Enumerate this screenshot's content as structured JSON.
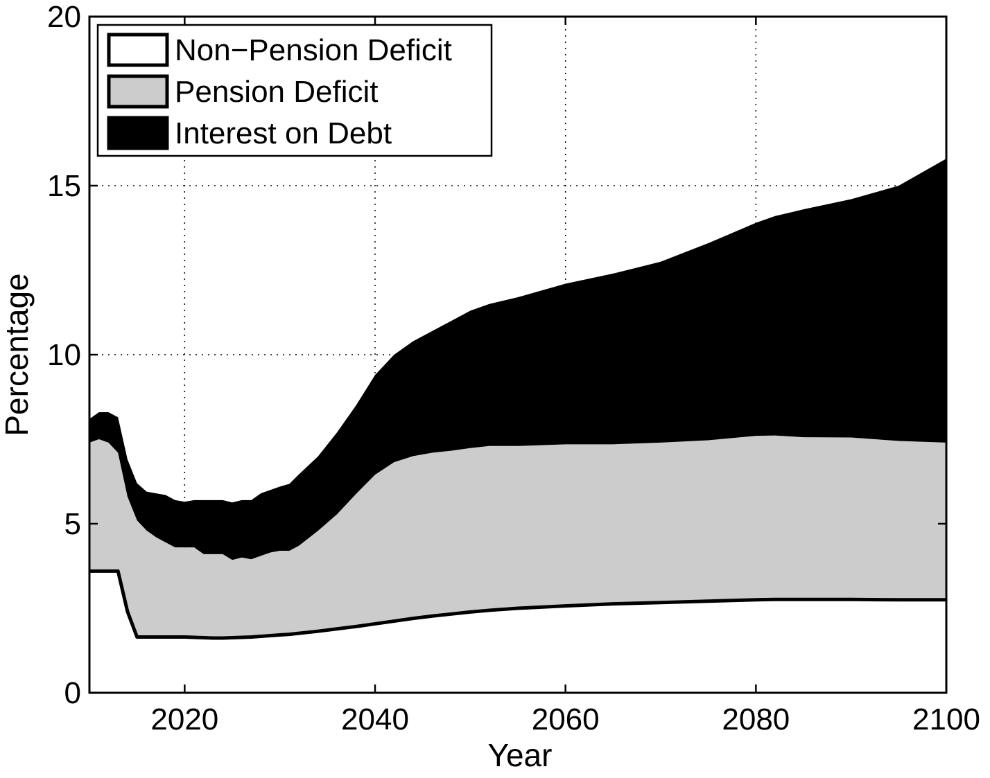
{
  "chart_data": {
    "type": "area",
    "stacked": true,
    "title": "",
    "xlabel": "Year",
    "ylabel": "Percentage",
    "xlim": [
      2010,
      2100
    ],
    "ylim": [
      0,
      20
    ],
    "xticks": [
      2020,
      2040,
      2060,
      2080,
      2100
    ],
    "yticks": [
      0,
      5,
      10,
      15,
      20
    ],
    "grid": true,
    "legend_position": "top-left",
    "x": [
      2010,
      2011,
      2012,
      2013,
      2014,
      2015,
      2016,
      2017,
      2018,
      2019,
      2020,
      2021,
      2022,
      2023,
      2024,
      2025,
      2026,
      2027,
      2028,
      2029,
      2030,
      2031,
      2032,
      2034,
      2036,
      2038,
      2040,
      2042,
      2044,
      2046,
      2048,
      2050,
      2052,
      2055,
      2060,
      2065,
      2070,
      2075,
      2080,
      2082,
      2085,
      2090,
      2095,
      2100
    ],
    "series": [
      {
        "name": "Non−Pension Deficit",
        "color": "#ffffff",
        "values": [
          3.6,
          3.6,
          3.6,
          3.6,
          2.4,
          1.65,
          1.65,
          1.65,
          1.65,
          1.65,
          1.65,
          1.64,
          1.63,
          1.62,
          1.62,
          1.63,
          1.64,
          1.65,
          1.67,
          1.69,
          1.71,
          1.73,
          1.76,
          1.82,
          1.89,
          1.96,
          2.04,
          2.12,
          2.2,
          2.27,
          2.33,
          2.39,
          2.44,
          2.5,
          2.57,
          2.63,
          2.67,
          2.71,
          2.75,
          2.76,
          2.76,
          2.76,
          2.75,
          2.75
        ]
      },
      {
        "name": "Pension Deficit",
        "color": "#cccccc",
        "values": [
          3.8,
          3.9,
          3.8,
          3.5,
          3.4,
          3.45,
          3.15,
          2.95,
          2.8,
          2.65,
          2.65,
          2.66,
          2.47,
          2.48,
          2.48,
          2.3,
          2.36,
          2.3,
          2.38,
          2.46,
          2.49,
          2.47,
          2.59,
          2.97,
          3.39,
          3.92,
          4.41,
          4.7,
          4.8,
          4.83,
          4.83,
          4.85,
          4.86,
          4.8,
          4.78,
          4.72,
          4.73,
          4.76,
          4.85,
          4.85,
          4.8,
          4.79,
          4.7,
          4.65
        ]
      },
      {
        "name": "Interest on Debt",
        "color": "#000000",
        "values": [
          0.7,
          0.8,
          0.9,
          1.05,
          1.1,
          1.1,
          1.15,
          1.3,
          1.4,
          1.4,
          1.35,
          1.4,
          1.6,
          1.6,
          1.6,
          1.7,
          1.7,
          1.75,
          1.85,
          1.85,
          1.9,
          1.98,
          2.11,
          2.2,
          2.42,
          2.62,
          2.95,
          3.18,
          3.4,
          3.6,
          3.84,
          4.06,
          4.2,
          4.4,
          4.75,
          5.05,
          5.35,
          5.83,
          6.3,
          6.49,
          6.74,
          7.05,
          7.55,
          8.4
        ]
      }
    ]
  }
}
